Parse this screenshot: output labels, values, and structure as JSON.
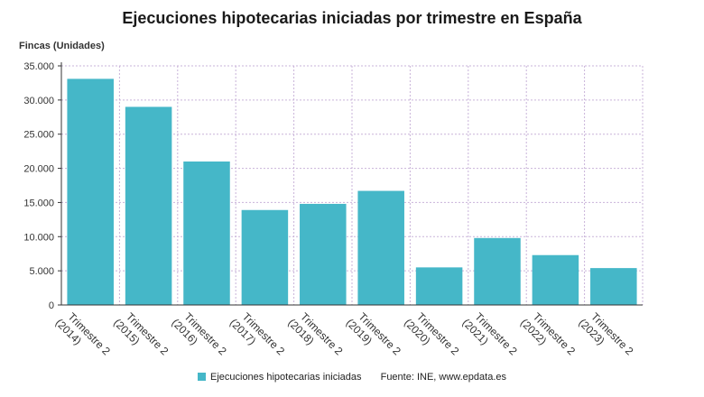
{
  "chart_data": {
    "type": "bar",
    "title": "Ejecuciones hipotecarias iniciadas por trimestre en España",
    "ylabel": "Fincas (Unidades)",
    "xlabel": "",
    "categories": [
      [
        "Trimestre 2",
        "(2014)"
      ],
      [
        "Trimestre 2",
        "(2015)"
      ],
      [
        "Trimestre 2",
        "(2016)"
      ],
      [
        "Trimestre 2",
        "(2017)"
      ],
      [
        "Trimestre 2",
        "(2018)"
      ],
      [
        "Trimestre 2",
        "(2019)"
      ],
      [
        "Trimestre 2",
        "(2020)"
      ],
      [
        "Trimestre 2",
        "(2021)"
      ],
      [
        "Trimestre 2",
        "(2022)"
      ],
      [
        "Trimestre 2",
        "(2023)"
      ]
    ],
    "series": [
      {
        "name": "Ejecuciones hipotecarias iniciadas",
        "color": "#45b7c8",
        "values": [
          33100,
          29000,
          21000,
          13900,
          14800,
          16700,
          5500,
          9800,
          7300,
          5400
        ]
      }
    ],
    "ylim": [
      0,
      35000
    ],
    "yticks": [
      0,
      5000,
      10000,
      15000,
      20000,
      25000,
      30000,
      35000
    ],
    "ytick_labels": [
      "0",
      "5.000",
      "10.000",
      "15.000",
      "20.000",
      "25.000",
      "30.000",
      "35.000"
    ],
    "grid": true,
    "grid_color": "#c9b3d9",
    "legend_position": "bottom"
  },
  "source": "Fuente: INE, www.epdata.es"
}
